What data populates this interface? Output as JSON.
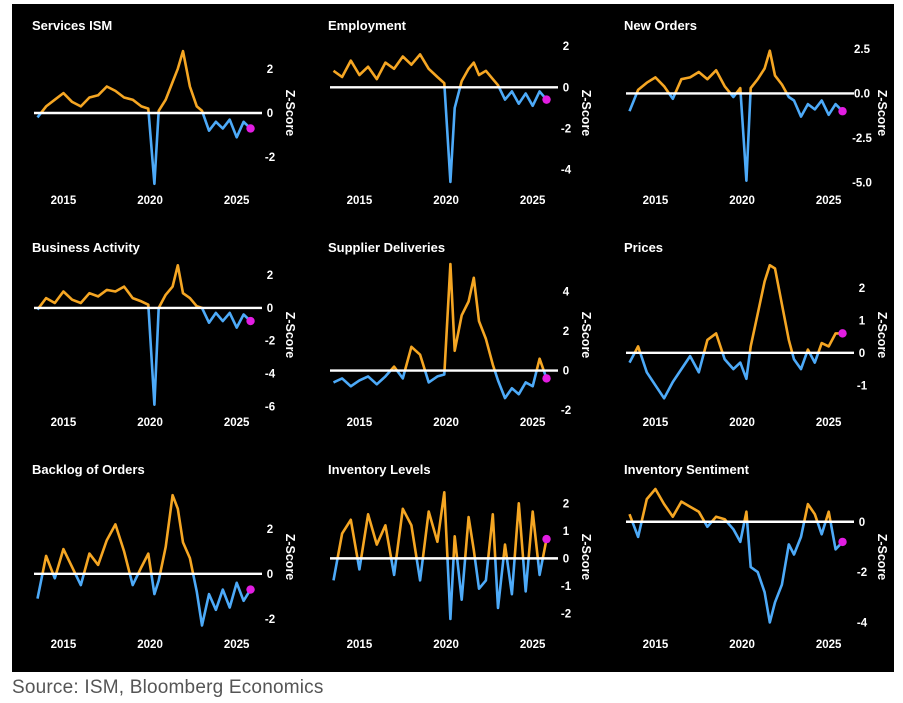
{
  "source": "Source: ISM, Bloomberg Economics",
  "colors": {
    "background": "#000000",
    "positive": "#F5A623",
    "negative": "#4DAAF8",
    "latest": "#E21DE2",
    "zero_line": "#FFFFFF"
  },
  "chart_data": [
    {
      "type": "line",
      "title": "Services ISM",
      "ylabel": "Z-Score",
      "ylim": [
        -3.3,
        3.3
      ],
      "yticks": [
        2,
        0,
        -2
      ],
      "x_ticks": [
        2015,
        2020,
        2025
      ],
      "x": [
        2013.5,
        2014.0,
        2014.5,
        2015.0,
        2015.5,
        2016.0,
        2016.5,
        2017.0,
        2017.5,
        2018.0,
        2018.5,
        2019.0,
        2019.5,
        2019.9,
        2020.25,
        2020.5,
        2020.9,
        2021.3,
        2021.6,
        2021.9,
        2022.3,
        2022.7,
        2023.0,
        2023.4,
        2023.8,
        2024.2,
        2024.6,
        2025.0,
        2025.4,
        2025.8
      ],
      "y": [
        -0.2,
        0.3,
        0.6,
        0.9,
        0.5,
        0.3,
        0.7,
        0.8,
        1.2,
        1.0,
        0.7,
        0.6,
        0.3,
        0.2,
        -3.2,
        0.1,
        0.6,
        1.4,
        2.0,
        2.8,
        1.2,
        0.3,
        0.1,
        -0.8,
        -0.4,
        -0.7,
        -0.3,
        -1.1,
        -0.4,
        -0.7
      ],
      "latest": {
        "x": 2025.8,
        "y": -0.7
      }
    },
    {
      "type": "line",
      "title": "Employment",
      "ylabel": "Z-Score",
      "ylim": [
        -4.8,
        2.3
      ],
      "yticks": [
        2,
        0,
        -2,
        -4
      ],
      "x_ticks": [
        2015,
        2020,
        2025
      ],
      "x": [
        2013.5,
        2014.0,
        2014.5,
        2015.0,
        2015.5,
        2016.0,
        2016.5,
        2017.0,
        2017.5,
        2018.0,
        2018.5,
        2019.0,
        2019.5,
        2019.9,
        2020.25,
        2020.5,
        2020.9,
        2021.3,
        2021.6,
        2021.9,
        2022.3,
        2022.7,
        2023.0,
        2023.4,
        2023.8,
        2024.2,
        2024.6,
        2025.0,
        2025.4,
        2025.8
      ],
      "y": [
        0.8,
        0.5,
        1.3,
        0.6,
        1.0,
        0.4,
        1.2,
        0.9,
        1.5,
        1.1,
        1.6,
        0.9,
        0.5,
        0.2,
        -4.6,
        -1.0,
        0.3,
        0.9,
        1.2,
        0.6,
        0.8,
        0.4,
        0.1,
        -0.6,
        -0.2,
        -0.8,
        -0.3,
        -0.9,
        -0.2,
        -0.6
      ],
      "latest": {
        "x": 2025.8,
        "y": -0.6
      }
    },
    {
      "type": "line",
      "title": "New Orders",
      "ylabel": "Z-Score",
      "ylim": [
        -5.2,
        3.0
      ],
      "yticks": [
        2.5,
        0.0,
        -2.5,
        -5.0
      ],
      "x_ticks": [
        2015,
        2020,
        2025
      ],
      "x": [
        2013.5,
        2014.0,
        2014.5,
        2015.0,
        2015.5,
        2016.0,
        2016.5,
        2017.0,
        2017.5,
        2018.0,
        2018.5,
        2019.0,
        2019.5,
        2019.9,
        2020.25,
        2020.5,
        2020.9,
        2021.3,
        2021.6,
        2021.9,
        2022.3,
        2022.7,
        2023.0,
        2023.4,
        2023.8,
        2024.2,
        2024.6,
        2025.0,
        2025.4,
        2025.8
      ],
      "y": [
        -1.0,
        0.2,
        0.6,
        0.9,
        0.4,
        -0.3,
        0.8,
        0.9,
        1.2,
        0.8,
        1.3,
        0.4,
        -0.2,
        0.3,
        -4.9,
        0.3,
        0.8,
        1.4,
        2.4,
        1.0,
        0.5,
        -0.2,
        -0.4,
        -1.3,
        -0.6,
        -0.9,
        -0.4,
        -1.2,
        -0.6,
        -1.0
      ],
      "latest": {
        "x": 2025.8,
        "y": -1.0
      }
    },
    {
      "type": "line",
      "title": "Business Activity",
      "ylabel": "Z-Score",
      "ylim": [
        -6.1,
        2.8
      ],
      "yticks": [
        2,
        0,
        -2,
        -4,
        -6
      ],
      "x_ticks": [
        2015,
        2020,
        2025
      ],
      "x": [
        2013.5,
        2014.0,
        2014.5,
        2015.0,
        2015.5,
        2016.0,
        2016.5,
        2017.0,
        2017.5,
        2018.0,
        2018.5,
        2019.0,
        2019.5,
        2019.9,
        2020.25,
        2020.5,
        2020.9,
        2021.3,
        2021.6,
        2021.9,
        2022.3,
        2022.7,
        2023.0,
        2023.4,
        2023.8,
        2024.2,
        2024.6,
        2025.0,
        2025.4,
        2025.8
      ],
      "y": [
        -0.1,
        0.6,
        0.3,
        1.0,
        0.5,
        0.3,
        0.9,
        0.7,
        1.1,
        1.0,
        1.3,
        0.6,
        0.4,
        0.2,
        -5.9,
        0.0,
        0.8,
        1.3,
        2.6,
        0.9,
        0.6,
        0.1,
        0.0,
        -0.9,
        -0.3,
        -0.8,
        -0.3,
        -1.2,
        -0.4,
        -0.8
      ],
      "latest": {
        "x": 2025.8,
        "y": -0.8
      }
    },
    {
      "type": "line",
      "title": "Supplier Deliveries",
      "ylabel": "Z-Score",
      "ylim": [
        -1.9,
        5.5
      ],
      "yticks": [
        4,
        2,
        0,
        -2
      ],
      "x_ticks": [
        2015,
        2020,
        2025
      ],
      "x": [
        2013.5,
        2014.0,
        2014.5,
        2015.0,
        2015.5,
        2016.0,
        2016.5,
        2017.0,
        2017.5,
        2018.0,
        2018.5,
        2019.0,
        2019.5,
        2019.9,
        2020.25,
        2020.5,
        2020.9,
        2021.3,
        2021.6,
        2021.9,
        2022.3,
        2022.7,
        2023.0,
        2023.4,
        2023.8,
        2024.2,
        2024.6,
        2025.0,
        2025.4,
        2025.8
      ],
      "y": [
        -0.6,
        -0.4,
        -0.8,
        -0.5,
        -0.3,
        -0.7,
        -0.3,
        0.2,
        -0.4,
        1.2,
        0.8,
        -0.6,
        -0.3,
        -0.2,
        5.4,
        1.0,
        2.8,
        3.5,
        4.7,
        2.5,
        1.6,
        0.3,
        -0.5,
        -1.4,
        -0.9,
        -1.2,
        -0.6,
        -0.8,
        0.6,
        -0.4
      ],
      "latest": {
        "x": 2025.8,
        "y": -0.4
      }
    },
    {
      "type": "line",
      "title": "Prices",
      "ylabel": "Z-Score",
      "ylim": [
        -1.7,
        2.8
      ],
      "yticks": [
        2,
        1,
        0,
        -1
      ],
      "x_ticks": [
        2015,
        2020,
        2025
      ],
      "x": [
        2013.5,
        2014.0,
        2014.5,
        2015.0,
        2015.5,
        2016.0,
        2016.5,
        2017.0,
        2017.5,
        2018.0,
        2018.5,
        2019.0,
        2019.5,
        2019.9,
        2020.25,
        2020.5,
        2020.9,
        2021.3,
        2021.6,
        2021.9,
        2022.3,
        2022.7,
        2023.0,
        2023.4,
        2023.8,
        2024.2,
        2024.6,
        2025.0,
        2025.4,
        2025.8
      ],
      "y": [
        -0.3,
        0.2,
        -0.6,
        -1.0,
        -1.4,
        -0.9,
        -0.5,
        -0.1,
        -0.6,
        0.4,
        0.6,
        -0.2,
        -0.5,
        -0.3,
        -0.8,
        0.2,
        1.2,
        2.2,
        2.7,
        2.6,
        1.5,
        0.4,
        -0.2,
        -0.5,
        0.1,
        -0.3,
        0.3,
        0.2,
        0.6,
        0.6
      ],
      "latest": {
        "x": 2025.8,
        "y": 0.6
      }
    },
    {
      "type": "line",
      "title": "Backlog of Orders",
      "ylabel": "Z-Score",
      "ylim": [
        -2.5,
        4.0
      ],
      "yticks": [
        2,
        0,
        -2
      ],
      "x_ticks": [
        2015,
        2020,
        2025
      ],
      "x": [
        2013.5,
        2014.0,
        2014.5,
        2015.0,
        2015.5,
        2016.0,
        2016.5,
        2017.0,
        2017.5,
        2018.0,
        2018.5,
        2019.0,
        2019.5,
        2019.9,
        2020.25,
        2020.5,
        2020.9,
        2021.3,
        2021.6,
        2021.9,
        2022.3,
        2022.7,
        2023.0,
        2023.4,
        2023.8,
        2024.2,
        2024.6,
        2025.0,
        2025.4,
        2025.8
      ],
      "y": [
        -1.1,
        0.8,
        -0.2,
        1.1,
        0.3,
        -0.5,
        0.9,
        0.4,
        1.5,
        2.2,
        1.0,
        -0.5,
        0.3,
        0.9,
        -0.9,
        -0.3,
        1.2,
        3.5,
        2.9,
        1.4,
        0.7,
        -0.8,
        -2.3,
        -0.9,
        -1.6,
        -0.7,
        -1.5,
        -0.4,
        -1.2,
        -0.7
      ],
      "latest": {
        "x": 2025.8,
        "y": -0.7
      }
    },
    {
      "type": "line",
      "title": "Inventory Levels",
      "ylabel": "Z-Score",
      "ylim": [
        -2.6,
        2.7
      ],
      "yticks": [
        2,
        1,
        0,
        -1,
        -2
      ],
      "x_ticks": [
        2015,
        2020,
        2025
      ],
      "x": [
        2013.5,
        2014.0,
        2014.5,
        2015.0,
        2015.5,
        2016.0,
        2016.5,
        2017.0,
        2017.5,
        2018.0,
        2018.5,
        2019.0,
        2019.5,
        2019.9,
        2020.25,
        2020.5,
        2020.9,
        2021.3,
        2021.6,
        2021.9,
        2022.3,
        2022.7,
        2023.0,
        2023.4,
        2023.8,
        2024.2,
        2024.6,
        2025.0,
        2025.4,
        2025.8
      ],
      "y": [
        -0.8,
        0.9,
        1.4,
        -0.4,
        1.6,
        0.5,
        1.2,
        -0.6,
        1.8,
        1.2,
        -0.8,
        1.7,
        0.6,
        2.4,
        -2.2,
        0.8,
        -1.5,
        1.5,
        0.3,
        -1.1,
        -0.8,
        1.6,
        -1.8,
        0.5,
        -1.3,
        2.0,
        -1.2,
        1.7,
        -0.6,
        0.7
      ],
      "latest": {
        "x": 2025.8,
        "y": 0.7
      }
    },
    {
      "type": "line",
      "title": "Inventory Sentiment",
      "ylabel": "Z-Score",
      "ylim": [
        -4.3,
        1.5
      ],
      "yticks": [
        0,
        -2,
        -4
      ],
      "x_ticks": [
        2015,
        2020,
        2025
      ],
      "x": [
        2013.5,
        2014.0,
        2014.5,
        2015.0,
        2015.5,
        2016.0,
        2016.5,
        2017.0,
        2017.5,
        2018.0,
        2018.5,
        2019.0,
        2019.5,
        2019.9,
        2020.25,
        2020.5,
        2020.9,
        2021.3,
        2021.6,
        2021.9,
        2022.3,
        2022.7,
        2023.0,
        2023.4,
        2023.8,
        2024.2,
        2024.6,
        2025.0,
        2025.4,
        2025.8
      ],
      "y": [
        0.3,
        -0.6,
        0.9,
        1.3,
        0.7,
        0.2,
        0.8,
        0.6,
        0.4,
        -0.2,
        0.2,
        0.1,
        -0.3,
        -0.8,
        0.4,
        -1.8,
        -2.0,
        -2.8,
        -4.0,
        -3.2,
        -2.5,
        -0.9,
        -1.3,
        -0.6,
        0.7,
        0.3,
        -0.5,
        0.4,
        -1.1,
        -0.8
      ],
      "latest": {
        "x": 2025.8,
        "y": -0.8
      }
    }
  ]
}
